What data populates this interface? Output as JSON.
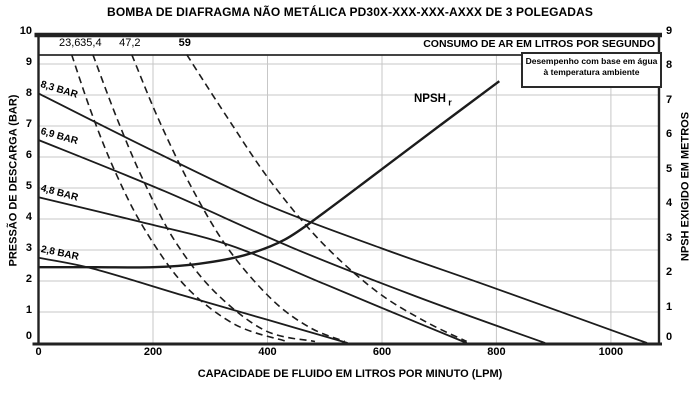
{
  "title": "BOMBA DE DIAFRAGMA NÃO METÁLICA PD30X-XXX-XXX-AXXX DE 3 POLEGADAS",
  "air_header": "CONSUMO DE AR EM LITROS POR SEGUNDO",
  "note_box": {
    "line1": "Desempenho com base em água",
    "line2": "à temperatura ambiente"
  },
  "chart_data": {
    "type": "line",
    "title": "BOMBA DE DIAFRAGMA NÃO METÁLICA PD30X-XXX-XXX-AXXX DE 3 POLEGADAS",
    "grid": "on",
    "x": {
      "label": "CAPACIDADE DE FLUIDO EM LITROS POR MINUTO (LPM)",
      "ticks": [
        0,
        200,
        400,
        600,
        800,
        1000
      ],
      "range": [
        0,
        1084
      ]
    },
    "y_left": {
      "label": "PRESSÃO DE DESCARGA (BAR)",
      "ticks": [
        0,
        1,
        2,
        3,
        4,
        5,
        6,
        7,
        8,
        9,
        10
      ],
      "range": [
        0,
        10
      ]
    },
    "y_right": {
      "label": "NPSH EXIGIDO EM METROS",
      "ticks": [
        0,
        1,
        2,
        3,
        4,
        5,
        6,
        7,
        8,
        9
      ],
      "range": [
        0,
        9
      ]
    },
    "pressure_curves_bar": [
      {
        "label": "8,3 BAR",
        "points_lpm_bar": [
          [
            0,
            8.05
          ],
          [
            200,
            6.2
          ],
          [
            400,
            4.45
          ],
          [
            600,
            3.05
          ],
          [
            800,
            1.75
          ],
          [
            1063,
            0
          ]
        ]
      },
      {
        "label": "6,9 BAR",
        "points_lpm_bar": [
          [
            0,
            6.55
          ],
          [
            220,
            4.9
          ],
          [
            440,
            3.1
          ],
          [
            660,
            1.5
          ],
          [
            885,
            0
          ]
        ]
      },
      {
        "label": "4,8 BAR",
        "points_lpm_bar": [
          [
            0,
            4.7
          ],
          [
            180,
            3.9
          ],
          [
            335,
            3.15
          ],
          [
            500,
            1.9
          ],
          [
            630,
            0.9
          ],
          [
            748,
            0
          ]
        ]
      },
      {
        "label": "2,8 BAR",
        "points_lpm_bar": [
          [
            0,
            2.75
          ],
          [
            95,
            2.4
          ],
          [
            250,
            1.55
          ],
          [
            400,
            0.75
          ],
          [
            540,
            0
          ]
        ]
      }
    ],
    "air_consumption_curves_lps": [
      {
        "label": "23,6",
        "bold": false,
        "points_lpm_bar": [
          [
            58,
            9.3
          ],
          [
            95,
            7.3
          ],
          [
            137,
            5.4
          ],
          [
            186,
            3.65
          ],
          [
            256,
            1.85
          ],
          [
            343,
            0.6
          ],
          [
            434,
            0.05
          ]
        ]
      },
      {
        "label": "35,4",
        "bold": false,
        "points_lpm_bar": [
          [
            95,
            9.3
          ],
          [
            137,
            7.25
          ],
          [
            183,
            5.25
          ],
          [
            238,
            3.3
          ],
          [
            308,
            1.65
          ],
          [
            396,
            0.4
          ],
          [
            483,
            0.05
          ]
        ]
      },
      {
        "label": "47,2",
        "bold": false,
        "points_lpm_bar": [
          [
            163,
            9.3
          ],
          [
            209,
            7.25
          ],
          [
            265,
            5.1
          ],
          [
            331,
            3.05
          ],
          [
            408,
            1.4
          ],
          [
            474,
            0.5
          ],
          [
            535,
            0.05
          ]
        ]
      },
      {
        "label": "59",
        "bold": true,
        "points_lpm_bar": [
          [
            259,
            9.3
          ],
          [
            329,
            7.3
          ],
          [
            404,
            5.25
          ],
          [
            492,
            3.3
          ],
          [
            588,
            1.7
          ],
          [
            675,
            0.7
          ],
          [
            748,
            0.05
          ]
        ]
      }
    ],
    "npsh_curve": {
      "label": "NPSH",
      "label_sub": "r",
      "axis": "right",
      "points_lpm_m": [
        [
          0,
          2.2
        ],
        [
          100,
          2.2
        ],
        [
          200,
          2.2
        ],
        [
          280,
          2.3
        ],
        [
          360,
          2.55
        ],
        [
          430,
          3.0
        ],
        [
          500,
          3.8
        ],
        [
          600,
          5.05
        ],
        [
          700,
          6.3
        ],
        [
          805,
          7.6
        ]
      ]
    },
    "colors": {
      "line": "#1c1c1c",
      "grid": "#c7c7c7",
      "text": "#000000",
      "background": "#ffffff"
    }
  }
}
